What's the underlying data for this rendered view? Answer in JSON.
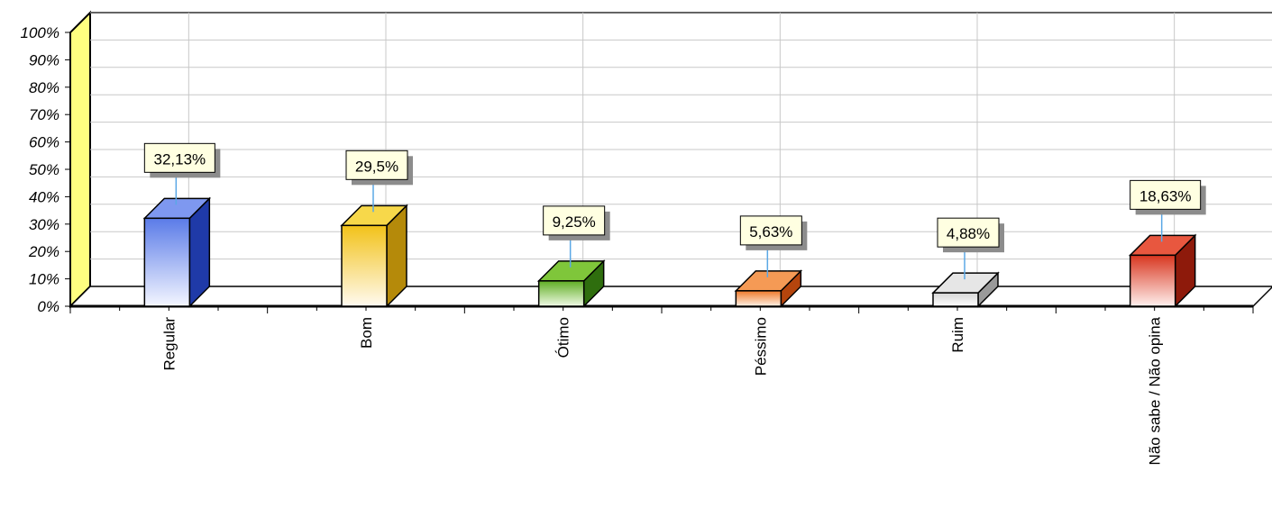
{
  "chart_data": {
    "type": "bar",
    "categories": [
      "Regular",
      "Bom",
      "Ótimo",
      "Péssimo",
      "Ruim",
      "Não sabe / Não opina"
    ],
    "values": [
      32.13,
      29.5,
      9.25,
      5.63,
      4.88,
      18.63
    ],
    "data_labels": [
      "32,13%",
      "29,5%",
      "9,25%",
      "5,63%",
      "4,88%",
      "18,63%"
    ],
    "y_ticks": [
      "0%",
      "10%",
      "20%",
      "30%",
      "40%",
      "50%",
      "60%",
      "70%",
      "80%",
      "90%",
      "100%"
    ],
    "ylim": [
      0,
      100
    ],
    "grid": true,
    "style": "3d",
    "colors": [
      {
        "front_top": "#5a7be8",
        "front_bottom": "#f4f6ff",
        "top": "#7e98f0",
        "side": "#1f3aa8"
      },
      {
        "front_top": "#f2c219",
        "front_bottom": "#fffaf0",
        "top": "#f7d84a",
        "side": "#b58a0a"
      },
      {
        "front_top": "#5fae23",
        "front_bottom": "#f0fae6",
        "top": "#7fc63a",
        "side": "#2f6e0e"
      },
      {
        "front_top": "#f07a2a",
        "front_bottom": "#fff1e6",
        "top": "#f59a55",
        "side": "#b5450d"
      },
      {
        "front_top": "#d6d6d6",
        "front_bottom": "#ffffff",
        "top": "#e6e6e6",
        "side": "#9a9a9a"
      },
      {
        "front_top": "#d8361f",
        "front_bottom": "#fff0ee",
        "top": "#e8573f",
        "side": "#8e1a0b"
      }
    ],
    "wall_color": "#ffff80",
    "label_box_color": "#ffffe1",
    "leader_color": "#5aa8e6"
  }
}
